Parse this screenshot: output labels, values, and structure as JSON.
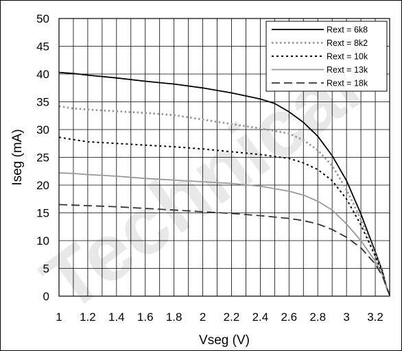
{
  "chart_data": {
    "type": "line",
    "title": "",
    "xlabel": "Vseg (V)",
    "ylabel": "Iseg (mA)",
    "xlim": [
      1,
      3.3
    ],
    "ylim": [
      0,
      50
    ],
    "x_ticks": [
      1,
      1.2,
      1.4,
      1.6,
      1.8,
      2,
      2.2,
      2.4,
      2.6,
      2.8,
      3,
      3.2
    ],
    "y_ticks": [
      0,
      5,
      10,
      15,
      20,
      25,
      30,
      35,
      40,
      45,
      50
    ],
    "grid": true,
    "legend_position": "top-right",
    "watermark": "Technical",
    "series": [
      {
        "name": "Rext = 6k8",
        "color": "#000000",
        "dash": "solid",
        "points": [
          [
            1.0,
            40.3
          ],
          [
            1.1,
            40.1
          ],
          [
            1.2,
            39.8
          ],
          [
            1.4,
            39.3
          ],
          [
            1.6,
            38.7
          ],
          [
            1.8,
            38.2
          ],
          [
            2.0,
            37.5
          ],
          [
            2.2,
            36.6
          ],
          [
            2.4,
            35.5
          ],
          [
            2.5,
            34.7
          ],
          [
            2.6,
            33.2
          ],
          [
            2.7,
            31.3
          ],
          [
            2.8,
            28.8
          ],
          [
            2.9,
            25.3
          ],
          [
            3.0,
            20.8
          ],
          [
            3.1,
            14.8
          ],
          [
            3.2,
            8.0
          ],
          [
            3.25,
            4.5
          ],
          [
            3.28,
            1.5
          ],
          [
            3.3,
            0.2
          ]
        ]
      },
      {
        "name": "Rext = 8k2",
        "color": "#999999",
        "dash": "dot",
        "points": [
          [
            1.0,
            34.2
          ],
          [
            1.1,
            33.8
          ],
          [
            1.2,
            33.6
          ],
          [
            1.4,
            33.3
          ],
          [
            1.6,
            33.0
          ],
          [
            1.8,
            32.6
          ],
          [
            2.0,
            31.8
          ],
          [
            2.2,
            31.0
          ],
          [
            2.4,
            30.2
          ],
          [
            2.6,
            29.3
          ],
          [
            2.7,
            28.1
          ],
          [
            2.8,
            26.3
          ],
          [
            2.9,
            23.5
          ],
          [
            3.0,
            19.2
          ],
          [
            3.1,
            13.8
          ],
          [
            3.2,
            7.6
          ],
          [
            3.25,
            4.3
          ],
          [
            3.28,
            1.5
          ],
          [
            3.3,
            0.2
          ]
        ]
      },
      {
        "name": "Rext = 10k",
        "color": "#000000",
        "dash": "dash-dot",
        "points": [
          [
            1.0,
            28.6
          ],
          [
            1.1,
            28.2
          ],
          [
            1.2,
            27.8
          ],
          [
            1.4,
            27.5
          ],
          [
            1.6,
            27.2
          ],
          [
            1.8,
            26.9
          ],
          [
            2.0,
            26.5
          ],
          [
            2.2,
            26.0
          ],
          [
            2.4,
            25.5
          ],
          [
            2.6,
            24.8
          ],
          [
            2.7,
            24.0
          ],
          [
            2.8,
            22.8
          ],
          [
            2.9,
            20.8
          ],
          [
            3.0,
            17.5
          ],
          [
            3.1,
            12.8
          ],
          [
            3.2,
            7.2
          ],
          [
            3.25,
            4.1
          ],
          [
            3.28,
            1.5
          ],
          [
            3.3,
            0.2
          ]
        ]
      },
      {
        "name": "Rext = 13k",
        "color": "#999999",
        "dash": "solid",
        "points": [
          [
            1.0,
            22.2
          ],
          [
            1.1,
            22.1
          ],
          [
            1.2,
            21.9
          ],
          [
            1.4,
            21.6
          ],
          [
            1.6,
            21.2
          ],
          [
            1.8,
            20.9
          ],
          [
            2.0,
            20.6
          ],
          [
            2.2,
            20.3
          ],
          [
            2.4,
            19.8
          ],
          [
            2.6,
            18.9
          ],
          [
            2.7,
            18.2
          ],
          [
            2.8,
            17.1
          ],
          [
            2.9,
            15.5
          ],
          [
            3.0,
            13.0
          ],
          [
            3.1,
            10.0
          ],
          [
            3.2,
            6.3
          ],
          [
            3.25,
            3.8
          ],
          [
            3.28,
            1.5
          ],
          [
            3.3,
            0.2
          ]
        ]
      },
      {
        "name": "Rext = 18k",
        "color": "#333333",
        "dash": "dash",
        "points": [
          [
            1.0,
            16.5
          ],
          [
            1.1,
            16.4
          ],
          [
            1.2,
            16.3
          ],
          [
            1.4,
            16.1
          ],
          [
            1.6,
            15.8
          ],
          [
            1.8,
            15.5
          ],
          [
            2.0,
            15.2
          ],
          [
            2.2,
            14.9
          ],
          [
            2.4,
            14.5
          ],
          [
            2.6,
            14.0
          ],
          [
            2.7,
            13.6
          ],
          [
            2.8,
            13.0
          ],
          [
            2.9,
            12.0
          ],
          [
            3.0,
            10.6
          ],
          [
            3.1,
            8.7
          ],
          [
            3.2,
            5.8
          ],
          [
            3.25,
            3.6
          ],
          [
            3.28,
            1.5
          ],
          [
            3.3,
            0.2
          ]
        ]
      }
    ]
  }
}
